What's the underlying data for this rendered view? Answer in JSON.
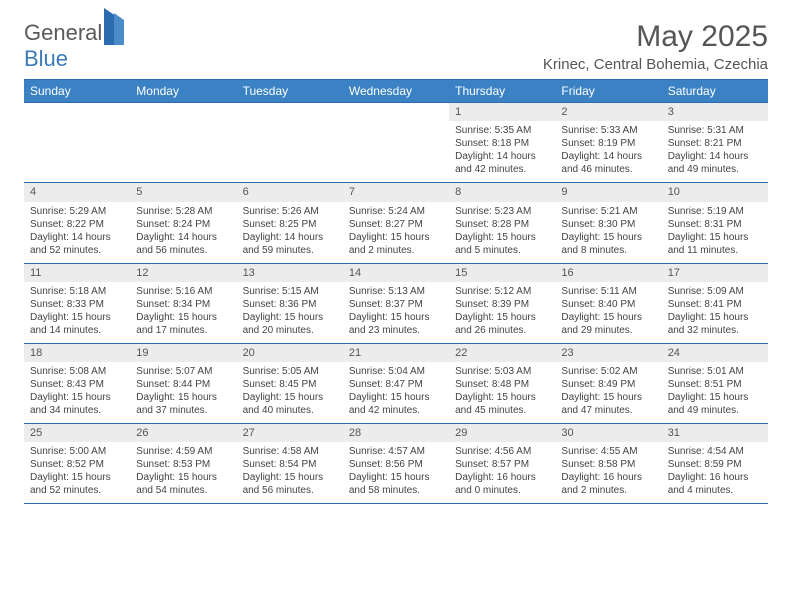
{
  "logo": {
    "general": "General",
    "blue": "Blue"
  },
  "title": "May 2025",
  "location": "Krinec, Central Bohemia, Czechia",
  "colors": {
    "header_bg": "#3a82c4",
    "border": "#2b6caf",
    "daynum_bg": "#ececec",
    "text": "#444444",
    "title_text": "#555555"
  },
  "weekdays": [
    "Sunday",
    "Monday",
    "Tuesday",
    "Wednesday",
    "Thursday",
    "Friday",
    "Saturday"
  ],
  "weeks": [
    [
      null,
      null,
      null,
      null,
      {
        "n": "1",
        "sr": "Sunrise: 5:35 AM",
        "ss": "Sunset: 8:18 PM",
        "dl": "Daylight: 14 hours and 42 minutes."
      },
      {
        "n": "2",
        "sr": "Sunrise: 5:33 AM",
        "ss": "Sunset: 8:19 PM",
        "dl": "Daylight: 14 hours and 46 minutes."
      },
      {
        "n": "3",
        "sr": "Sunrise: 5:31 AM",
        "ss": "Sunset: 8:21 PM",
        "dl": "Daylight: 14 hours and 49 minutes."
      }
    ],
    [
      {
        "n": "4",
        "sr": "Sunrise: 5:29 AM",
        "ss": "Sunset: 8:22 PM",
        "dl": "Daylight: 14 hours and 52 minutes."
      },
      {
        "n": "5",
        "sr": "Sunrise: 5:28 AM",
        "ss": "Sunset: 8:24 PM",
        "dl": "Daylight: 14 hours and 56 minutes."
      },
      {
        "n": "6",
        "sr": "Sunrise: 5:26 AM",
        "ss": "Sunset: 8:25 PM",
        "dl": "Daylight: 14 hours and 59 minutes."
      },
      {
        "n": "7",
        "sr": "Sunrise: 5:24 AM",
        "ss": "Sunset: 8:27 PM",
        "dl": "Daylight: 15 hours and 2 minutes."
      },
      {
        "n": "8",
        "sr": "Sunrise: 5:23 AM",
        "ss": "Sunset: 8:28 PM",
        "dl": "Daylight: 15 hours and 5 minutes."
      },
      {
        "n": "9",
        "sr": "Sunrise: 5:21 AM",
        "ss": "Sunset: 8:30 PM",
        "dl": "Daylight: 15 hours and 8 minutes."
      },
      {
        "n": "10",
        "sr": "Sunrise: 5:19 AM",
        "ss": "Sunset: 8:31 PM",
        "dl": "Daylight: 15 hours and 11 minutes."
      }
    ],
    [
      {
        "n": "11",
        "sr": "Sunrise: 5:18 AM",
        "ss": "Sunset: 8:33 PM",
        "dl": "Daylight: 15 hours and 14 minutes."
      },
      {
        "n": "12",
        "sr": "Sunrise: 5:16 AM",
        "ss": "Sunset: 8:34 PM",
        "dl": "Daylight: 15 hours and 17 minutes."
      },
      {
        "n": "13",
        "sr": "Sunrise: 5:15 AM",
        "ss": "Sunset: 8:36 PM",
        "dl": "Daylight: 15 hours and 20 minutes."
      },
      {
        "n": "14",
        "sr": "Sunrise: 5:13 AM",
        "ss": "Sunset: 8:37 PM",
        "dl": "Daylight: 15 hours and 23 minutes."
      },
      {
        "n": "15",
        "sr": "Sunrise: 5:12 AM",
        "ss": "Sunset: 8:39 PM",
        "dl": "Daylight: 15 hours and 26 minutes."
      },
      {
        "n": "16",
        "sr": "Sunrise: 5:11 AM",
        "ss": "Sunset: 8:40 PM",
        "dl": "Daylight: 15 hours and 29 minutes."
      },
      {
        "n": "17",
        "sr": "Sunrise: 5:09 AM",
        "ss": "Sunset: 8:41 PM",
        "dl": "Daylight: 15 hours and 32 minutes."
      }
    ],
    [
      {
        "n": "18",
        "sr": "Sunrise: 5:08 AM",
        "ss": "Sunset: 8:43 PM",
        "dl": "Daylight: 15 hours and 34 minutes."
      },
      {
        "n": "19",
        "sr": "Sunrise: 5:07 AM",
        "ss": "Sunset: 8:44 PM",
        "dl": "Daylight: 15 hours and 37 minutes."
      },
      {
        "n": "20",
        "sr": "Sunrise: 5:05 AM",
        "ss": "Sunset: 8:45 PM",
        "dl": "Daylight: 15 hours and 40 minutes."
      },
      {
        "n": "21",
        "sr": "Sunrise: 5:04 AM",
        "ss": "Sunset: 8:47 PM",
        "dl": "Daylight: 15 hours and 42 minutes."
      },
      {
        "n": "22",
        "sr": "Sunrise: 5:03 AM",
        "ss": "Sunset: 8:48 PM",
        "dl": "Daylight: 15 hours and 45 minutes."
      },
      {
        "n": "23",
        "sr": "Sunrise: 5:02 AM",
        "ss": "Sunset: 8:49 PM",
        "dl": "Daylight: 15 hours and 47 minutes."
      },
      {
        "n": "24",
        "sr": "Sunrise: 5:01 AM",
        "ss": "Sunset: 8:51 PM",
        "dl": "Daylight: 15 hours and 49 minutes."
      }
    ],
    [
      {
        "n": "25",
        "sr": "Sunrise: 5:00 AM",
        "ss": "Sunset: 8:52 PM",
        "dl": "Daylight: 15 hours and 52 minutes."
      },
      {
        "n": "26",
        "sr": "Sunrise: 4:59 AM",
        "ss": "Sunset: 8:53 PM",
        "dl": "Daylight: 15 hours and 54 minutes."
      },
      {
        "n": "27",
        "sr": "Sunrise: 4:58 AM",
        "ss": "Sunset: 8:54 PM",
        "dl": "Daylight: 15 hours and 56 minutes."
      },
      {
        "n": "28",
        "sr": "Sunrise: 4:57 AM",
        "ss": "Sunset: 8:56 PM",
        "dl": "Daylight: 15 hours and 58 minutes."
      },
      {
        "n": "29",
        "sr": "Sunrise: 4:56 AM",
        "ss": "Sunset: 8:57 PM",
        "dl": "Daylight: 16 hours and 0 minutes."
      },
      {
        "n": "30",
        "sr": "Sunrise: 4:55 AM",
        "ss": "Sunset: 8:58 PM",
        "dl": "Daylight: 16 hours and 2 minutes."
      },
      {
        "n": "31",
        "sr": "Sunrise: 4:54 AM",
        "ss": "Sunset: 8:59 PM",
        "dl": "Daylight: 16 hours and 4 minutes."
      }
    ]
  ]
}
